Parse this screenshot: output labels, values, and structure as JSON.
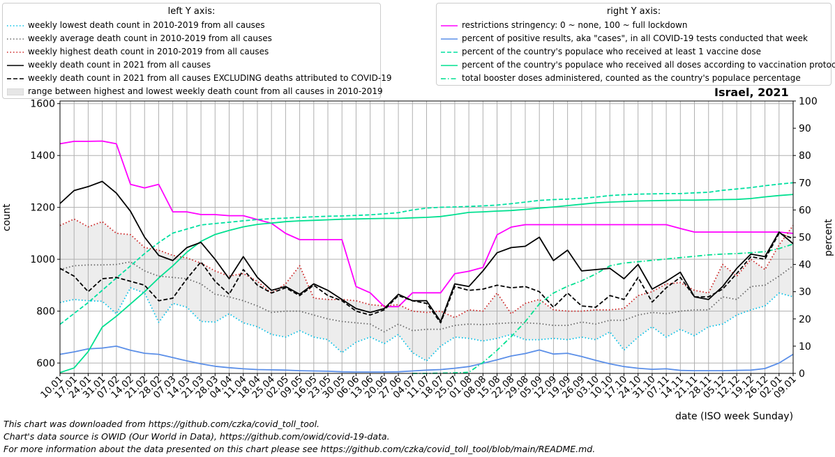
{
  "chart_data": {
    "type": "line",
    "title": "Israel, 2021",
    "xlabel": "date (ISO week Sunday)",
    "ylabel_left": "count",
    "ylabel_right": "percent",
    "ylim_left": [
      560,
      1610
    ],
    "ylim_right": [
      0,
      100
    ],
    "yticks_left": [
      600,
      800,
      1000,
      1200,
      1400,
      1600
    ],
    "yticks_right": [
      0,
      10,
      20,
      30,
      40,
      50,
      60,
      70,
      80,
      90,
      100
    ],
    "grid": true,
    "categories": [
      "10.01",
      "17.01",
      "24.01",
      "31.01",
      "07.02",
      "14.02",
      "21.02",
      "28.02",
      "07.03",
      "14.03",
      "21.03",
      "28.03",
      "04.04",
      "11.04",
      "18.04",
      "25.04",
      "02.05",
      "09.05",
      "16.05",
      "23.05",
      "30.05",
      "06.06",
      "13.06",
      "20.06",
      "27.06",
      "04.07",
      "11.07",
      "18.07",
      "25.07",
      "01.08",
      "08.08",
      "15.08",
      "22.08",
      "29.08",
      "05.09",
      "12.09",
      "19.09",
      "26.09",
      "03.10",
      "10.10",
      "17.10",
      "24.10",
      "31.10",
      "07.11",
      "14.11",
      "21.11",
      "28.11",
      "05.12",
      "12.12",
      "19.12",
      "26.12",
      "02.01",
      "09.01"
    ],
    "legend_left_title": "left Y axis:",
    "legend_right_title": "right Y axis:",
    "series_left": [
      {
        "name": "weekly lowest death count in 2010-2019 from all causes",
        "color": "#00bfe6",
        "style": "dotted",
        "values": [
          833,
          845,
          840,
          838,
          790,
          890,
          870,
          757,
          830,
          815,
          760,
          758,
          790,
          755,
          740,
          710,
          700,
          725,
          700,
          690,
          640,
          680,
          700,
          675,
          710,
          640,
          608,
          665,
          700,
          695,
          685,
          695,
          710,
          690,
          690,
          695,
          690,
          700,
          690,
          720,
          650,
          700,
          740,
          700,
          730,
          705,
          740,
          750,
          785,
          805,
          820,
          870,
          855
        ]
      },
      {
        "name": "weekly average death count in 2010-2019 from all causes",
        "color": "#666666",
        "style": "dotted",
        "values": [
          960,
          975,
          978,
          978,
          980,
          990,
          955,
          935,
          930,
          925,
          905,
          865,
          855,
          840,
          820,
          795,
          800,
          800,
          785,
          770,
          760,
          755,
          750,
          720,
          750,
          725,
          730,
          730,
          745,
          750,
          748,
          752,
          755,
          755,
          752,
          745,
          745,
          758,
          750,
          765,
          765,
          785,
          795,
          790,
          800,
          805,
          805,
          855,
          845,
          895,
          900,
          935,
          975
        ]
      },
      {
        "name": "weekly highest death count in 2010-2019 from all causes",
        "color": "#cc2020",
        "style": "dotted",
        "values": [
          1130,
          1155,
          1125,
          1145,
          1100,
          1095,
          1045,
          1035,
          1015,
          1005,
          985,
          955,
          935,
          945,
          915,
          870,
          905,
          975,
          850,
          845,
          845,
          840,
          825,
          820,
          825,
          800,
          795,
          800,
          775,
          805,
          800,
          870,
          790,
          830,
          845,
          805,
          800,
          800,
          805,
          805,
          810,
          860,
          875,
          905,
          910,
          880,
          870,
          980,
          935,
          1000,
          960,
          1055,
          1130
        ]
      },
      {
        "name": "weekly death count in 2021 from all causes",
        "color": "#000000",
        "style": "solid",
        "values": [
          1215,
          1265,
          1280,
          1300,
          1255,
          1185,
          1085,
          1015,
          995,
          1045,
          1065,
          1000,
          925,
          1010,
          930,
          880,
          895,
          865,
          905,
          880,
          845,
          810,
          795,
          810,
          865,
          840,
          840,
          760,
          905,
          895,
          955,
          1025,
          1045,
          1050,
          1085,
          995,
          1035,
          955,
          960,
          965,
          925,
          980,
          885,
          915,
          950,
          855,
          845,
          895,
          965,
          1020,
          1010,
          1105,
          1060
        ]
      },
      {
        "name": "weekly death count in 2021 from all causes EXCLUDING deaths attributed to COVID-19",
        "color": "#000000",
        "style": "dashed",
        "values": [
          965,
          935,
          875,
          925,
          930,
          915,
          900,
          840,
          850,
          925,
          990,
          915,
          865,
          960,
          900,
          870,
          890,
          860,
          900,
          860,
          840,
          800,
          785,
          805,
          860,
          840,
          830,
          755,
          895,
          880,
          885,
          900,
          890,
          895,
          875,
          815,
          870,
          820,
          815,
          860,
          845,
          930,
          835,
          890,
          930,
          855,
          855,
          885,
          945,
          1010,
          1000,
          1100,
          1080
        ]
      },
      {
        "name": "range between highest and lowest weekly death count from all causes in 2010-2019",
        "color": "#e6e6e6",
        "style": "fill",
        "values": []
      }
    ],
    "series_right": [
      {
        "name": "restrictions stringency: 0 ~ none, 100 ~ full lockdown",
        "color": "#ff00ff",
        "style": "solid",
        "values": [
          84.3,
          85.2,
          85.2,
          85.3,
          84.3,
          69.4,
          68.1,
          69.4,
          59.3,
          59.3,
          58.3,
          58.3,
          57.9,
          57.9,
          56.5,
          55.1,
          51.4,
          49.1,
          49.1,
          49.1,
          49.1,
          31.9,
          29.6,
          24.5,
          24.5,
          29.6,
          29.6,
          29.6,
          36.6,
          37.5,
          38.9,
          50.9,
          53.7,
          54.6,
          54.6,
          54.6,
          54.6,
          54.6,
          54.6,
          54.6,
          54.6,
          54.6,
          54.6,
          54.6,
          53.2,
          51.9,
          51.9,
          51.9,
          51.9,
          51.9,
          51.9,
          51.9,
          51.4
        ]
      },
      {
        "name": "percent of positive results, aka \"cases\", in all COVID-19 tests conducted that week",
        "color": "#5b8fe8",
        "style": "solid",
        "values": [
          7.0,
          7.9,
          9.0,
          9.3,
          10.0,
          8.5,
          7.4,
          7.0,
          5.8,
          4.6,
          3.5,
          2.6,
          2.1,
          1.7,
          1.4,
          1.3,
          1.2,
          1.0,
          0.9,
          0.8,
          0.6,
          0.5,
          0.5,
          0.5,
          0.6,
          0.9,
          1.2,
          1.4,
          1.9,
          2.5,
          3.7,
          5.0,
          6.4,
          7.3,
          8.6,
          7.1,
          7.4,
          6.2,
          4.8,
          3.5,
          2.5,
          1.9,
          1.5,
          1.7,
          1.1,
          1.0,
          1.0,
          1.0,
          1.1,
          1.2,
          1.8,
          3.8,
          7.0
        ]
      },
      {
        "name": "percent of the country's populace who received at least 1 vaccine dose",
        "color": "#00e0a0",
        "style": "dashed",
        "values": [
          18.0,
          22.0,
          26.0,
          30.5,
          35.0,
          39.5,
          44.0,
          48.0,
          51.5,
          53.0,
          54.5,
          55.0,
          55.5,
          56.0,
          56.5,
          56.8,
          57.0,
          57.3,
          57.5,
          57.7,
          57.8,
          58.0,
          58.2,
          58.6,
          59.0,
          60.0,
          60.7,
          61.0,
          61.1,
          61.3,
          61.5,
          61.8,
          62.3,
          62.9,
          63.5,
          63.8,
          64.0,
          64.3,
          64.7,
          65.3,
          65.6,
          65.8,
          65.9,
          66.0,
          66.0,
          66.3,
          66.5,
          67.2,
          67.7,
          68.2,
          68.9,
          69.5,
          70.0
        ]
      },
      {
        "name": "percent of the country's populace who received all doses according to vaccination protocol",
        "color": "#00e090",
        "style": "solid",
        "values": [
          0.3,
          2.0,
          8.0,
          17.0,
          21.0,
          25.5,
          30.0,
          35.0,
          39.5,
          44.5,
          48.5,
          51.0,
          52.5,
          53.8,
          54.7,
          55.2,
          55.7,
          56.0,
          56.2,
          56.4,
          56.6,
          56.7,
          56.8,
          56.9,
          56.9,
          57.1,
          57.3,
          57.6,
          58.3,
          59.1,
          59.3,
          59.6,
          59.8,
          60.2,
          60.7,
          61.1,
          61.6,
          62.1,
          62.6,
          62.9,
          63.1,
          63.3,
          63.4,
          63.5,
          63.6,
          63.6,
          63.7,
          63.8,
          63.9,
          64.2,
          64.8,
          65.3,
          65.7
        ]
      },
      {
        "name": "total booster doses administered, counted as the country's populace percentage",
        "color": "#00e090",
        "style": "dashdot",
        "values": [
          null,
          null,
          null,
          null,
          null,
          null,
          null,
          null,
          null,
          null,
          null,
          null,
          null,
          null,
          null,
          null,
          null,
          null,
          null,
          null,
          null,
          null,
          null,
          null,
          null,
          0.0,
          0.0,
          0.1,
          0.2,
          0.4,
          4.0,
          8.5,
          13.5,
          19.0,
          25.5,
          29.5,
          32.0,
          34.0,
          36.5,
          39.5,
          40.5,
          41.0,
          41.5,
          42.0,
          42.5,
          43.0,
          43.5,
          43.8,
          44.0,
          44.3,
          44.7,
          45.8,
          47.5
        ]
      }
    ]
  },
  "footer": {
    "line1": "This chart was downloaded from https://github.com/czka/covid_toll_tool.",
    "line2": "Chart's data source is OWID (Our World in Data), https://github.com/owid/covid-19-data.",
    "line3": "For more information about the data presented on this chart please see https://github.com/czka/covid_toll_tool/blob/main/README.md."
  }
}
